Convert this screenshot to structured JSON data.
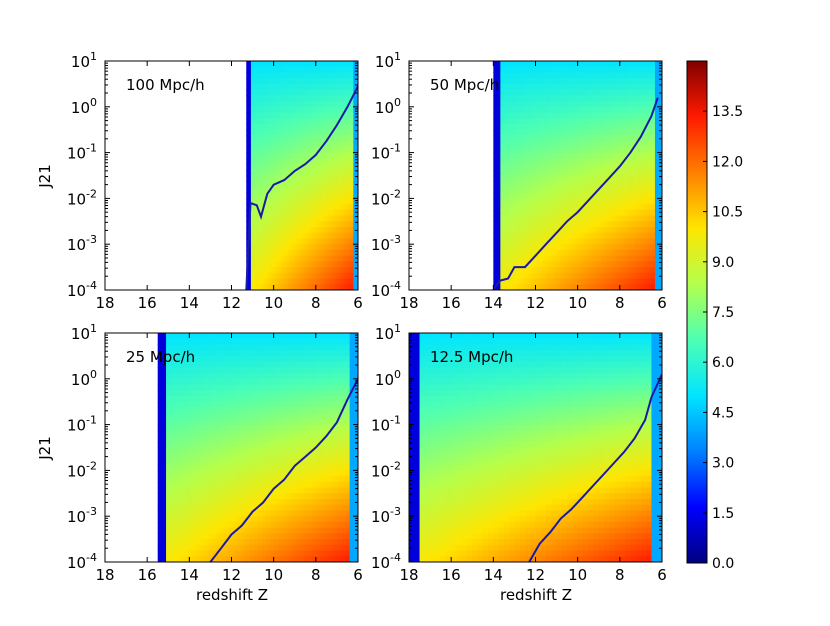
{
  "figure": {
    "ylabel": "J21",
    "xlabel": "redshift Z",
    "colorbar_ticks": [
      "0.0",
      "1.5",
      "3.0",
      "4.5",
      "6.0",
      "7.5",
      "9.0",
      "10.5",
      "12.0",
      "13.5"
    ],
    "colors": {
      "line": "#1a1aa6",
      "colormap": [
        "#00007f",
        "#0000ff",
        "#0080ff",
        "#00e5ff",
        "#4dffb3",
        "#b3ff4d",
        "#ffe500",
        "#ff8000",
        "#ff1a00",
        "#800000"
      ]
    }
  },
  "chart_data": [
    {
      "type": "heatmap",
      "title": "100 Mpc/h",
      "xlabel": "",
      "ylabel": "J21",
      "x_ticks": [
        "18",
        "16",
        "14",
        "12",
        "10",
        "8",
        "6"
      ],
      "y_ticks": [
        "10^-4",
        "10^-3",
        "10^-2",
        "10^-1",
        "10^0",
        "10^1"
      ],
      "xlim": [
        18,
        6
      ],
      "ylim_log10": [
        -4,
        1
      ],
      "color_range": [
        0,
        15
      ],
      "data_start_z": 11.3,
      "curve": {
        "z": [
          11.3,
          11.1,
          10.8,
          10.6,
          10.3,
          10.0,
          9.5,
          9.0,
          8.5,
          8.0,
          7.5,
          7.0,
          6.5,
          6.0
        ],
        "log10_j21": [
          -4.0,
          -2.1,
          -2.15,
          -2.4,
          -1.9,
          -1.7,
          -1.6,
          -1.4,
          -1.25,
          -1.05,
          -0.75,
          -0.4,
          0.0,
          0.45
        ]
      }
    },
    {
      "type": "heatmap",
      "title": "50 Mpc/h",
      "xlabel": "",
      "ylabel": "",
      "x_ticks": [
        "18",
        "16",
        "14",
        "12",
        "10",
        "8",
        "6"
      ],
      "y_ticks": [
        "10^-4",
        "10^-3",
        "10^-2",
        "10^-1",
        "10^0",
        "10^1"
      ],
      "xlim": [
        18,
        6
      ],
      "ylim_log10": [
        -4,
        1
      ],
      "color_range": [
        0,
        15
      ],
      "data_start_z": 14.0,
      "curve": {
        "z": [
          14.0,
          13.7,
          13.3,
          13.0,
          12.5,
          12.0,
          11.5,
          11.0,
          10.5,
          10.0,
          9.5,
          9.0,
          8.5,
          8.0,
          7.5,
          7.0,
          6.5,
          6.2
        ],
        "log10_j21": [
          -4.0,
          -3.8,
          -3.75,
          -3.5,
          -3.5,
          -3.25,
          -3.0,
          -2.75,
          -2.5,
          -2.3,
          -2.05,
          -1.8,
          -1.55,
          -1.3,
          -1.0,
          -0.65,
          -0.2,
          0.2
        ]
      }
    },
    {
      "type": "heatmap",
      "title": "25 Mpc/h",
      "xlabel": "redshift Z",
      "ylabel": "J21",
      "x_ticks": [
        "18",
        "16",
        "14",
        "12",
        "10",
        "8",
        "6"
      ],
      "y_ticks": [
        "10^-4",
        "10^-3",
        "10^-2",
        "10^-1",
        "10^0",
        "10^1"
      ],
      "xlim": [
        18,
        6
      ],
      "ylim_log10": [
        -4,
        1
      ],
      "color_range": [
        0,
        15
      ],
      "data_start_z": 15.5,
      "curve": {
        "z": [
          13.0,
          12.5,
          12.0,
          11.5,
          11.0,
          10.5,
          10.0,
          9.5,
          9.0,
          8.5,
          8.0,
          7.5,
          7.0,
          6.5,
          6.0
        ],
        "log10_j21": [
          -4.0,
          -3.7,
          -3.4,
          -3.2,
          -2.9,
          -2.7,
          -2.4,
          -2.2,
          -1.9,
          -1.7,
          -1.5,
          -1.25,
          -0.95,
          -0.45,
          0.0
        ]
      }
    },
    {
      "type": "heatmap",
      "title": "12.5 Mpc/h",
      "xlabel": "redshift Z",
      "ylabel": "",
      "x_ticks": [
        "18",
        "16",
        "14",
        "12",
        "10",
        "8",
        "6"
      ],
      "y_ticks": [
        "10^-4",
        "10^-3",
        "10^-2",
        "10^-1",
        "10^0",
        "10^1"
      ],
      "xlim": [
        18,
        6
      ],
      "ylim_log10": [
        -4,
        1
      ],
      "color_range": [
        0,
        15
      ],
      "data_start_z": 18.0,
      "curve": {
        "z": [
          12.3,
          11.8,
          11.3,
          10.8,
          10.3,
          9.8,
          9.3,
          8.8,
          8.3,
          7.8,
          7.3,
          6.8,
          6.5,
          6.0
        ],
        "log10_j21": [
          -4.0,
          -3.6,
          -3.35,
          -3.05,
          -2.85,
          -2.6,
          -2.35,
          -2.1,
          -1.85,
          -1.6,
          -1.3,
          -0.9,
          -0.4,
          0.1
        ]
      }
    }
  ]
}
